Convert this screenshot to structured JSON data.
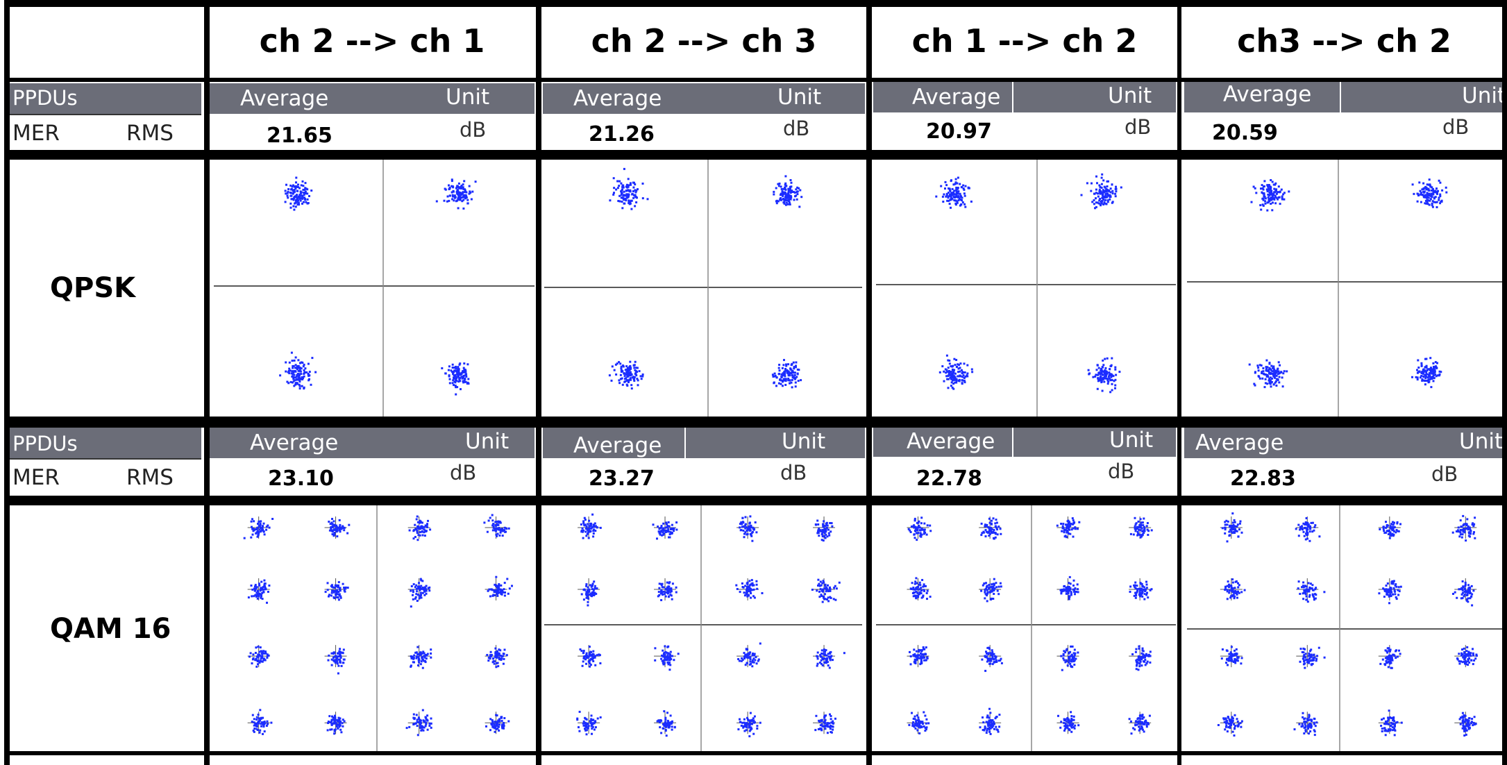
{
  "columns": [
    {
      "header": "ch 2 --> ch 1",
      "qpsk_mer": "21.65",
      "qam16_mer": "23.10"
    },
    {
      "header": "ch 2 --> ch 3",
      "qpsk_mer": "21.26",
      "qam16_mer": "23.27"
    },
    {
      "header": "ch 1 --> ch 2",
      "qpsk_mer": "20.97",
      "qam16_mer": "22.78"
    },
    {
      "header": "ch3 --> ch 2",
      "qpsk_mer": "20.59",
      "qam16_mer": "22.83"
    }
  ],
  "metric_labels": {
    "ppdus": "PPDUs",
    "mer": "MER",
    "rms": "RMS",
    "average": "Average",
    "unit": "Unit",
    "db": "dB"
  },
  "rows": {
    "qpsk": "QPSK",
    "qam16": "QAM 16"
  },
  "colors": {
    "point": "#1b2cff",
    "bar": "#6b6d78",
    "grid": "#000000"
  }
}
